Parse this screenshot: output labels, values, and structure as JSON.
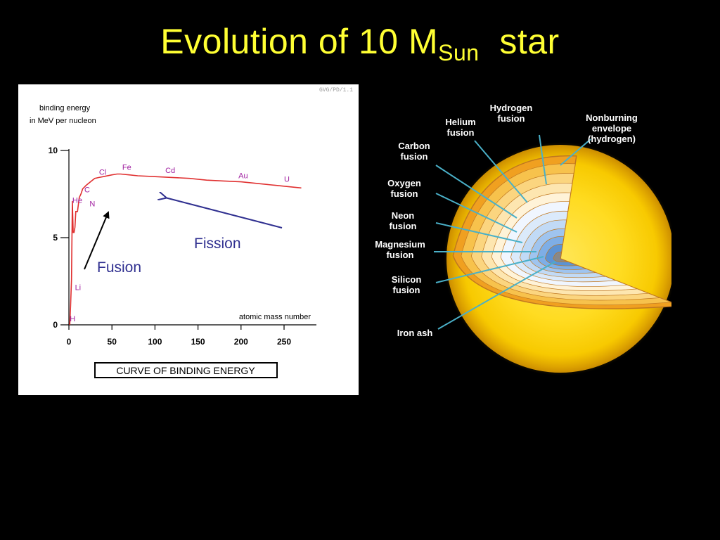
{
  "slide": {
    "title_main": "Evolution of 10 M",
    "title_sub": "Sun",
    "title_end": "star"
  },
  "colors": {
    "background": "#000000",
    "title": "#ffff33",
    "curve": "#e03030",
    "element_labels": "#a020a0",
    "arrow_blue": "#303090",
    "arrow_black": "#000000"
  },
  "chart_data": {
    "type": "line",
    "watermark": "GVG/PD/1.1",
    "ylabel_line1": "binding energy",
    "ylabel_line2": "in MeV per nucleon",
    "xlabel": "atomic mass number",
    "caption": "CURVE OF BINDING ENERGY",
    "xlim": [
      0,
      280
    ],
    "ylim": [
      0,
      10
    ],
    "x_ticks": [
      0,
      50,
      100,
      150,
      200,
      250
    ],
    "y_ticks": [
      0,
      5,
      10
    ],
    "x_tick_labels": [
      "0",
      "50",
      "100",
      "150",
      "200",
      "250"
    ],
    "y_tick_labels": [
      "0",
      "5",
      "10"
    ],
    "series": [
      {
        "x": [
          1,
          2,
          3,
          4,
          5,
          6,
          7,
          8,
          10,
          12,
          14,
          16,
          20,
          25,
          30,
          35,
          40,
          50,
          56,
          60,
          70,
          80,
          100,
          120,
          140,
          160,
          180,
          200,
          220,
          240,
          260,
          270
        ],
        "y": [
          0.0,
          1.1,
          2.6,
          7.1,
          5.3,
          5.3,
          5.6,
          6.5,
          6.5,
          7.3,
          7.5,
          7.8,
          8.0,
          8.2,
          8.4,
          8.45,
          8.5,
          8.6,
          8.65,
          8.65,
          8.6,
          8.55,
          8.5,
          8.45,
          8.4,
          8.3,
          8.25,
          8.2,
          8.1,
          8.0,
          7.9,
          7.85
        ]
      }
    ],
    "element_labels": [
      {
        "label": "H",
        "x": 1,
        "y": 0.2
      },
      {
        "label": "Li",
        "x": 7,
        "y": 2.0
      },
      {
        "label": "He",
        "x": 4,
        "y": 7.0
      },
      {
        "label": "C",
        "x": 18,
        "y": 7.6
      },
      {
        "label": "N",
        "x": 24,
        "y": 6.8
      },
      {
        "label": "Cl",
        "x": 35,
        "y": 8.6
      },
      {
        "label": "Fe",
        "x": 62,
        "y": 8.9
      },
      {
        "label": "Cd",
        "x": 112,
        "y": 8.7
      },
      {
        "label": "Au",
        "x": 197,
        "y": 8.4
      },
      {
        "label": "U",
        "x": 250,
        "y": 8.2
      }
    ]
  },
  "annotations": {
    "fusion": "Fusion",
    "fission": "Fission"
  },
  "diagram": {
    "labels": [
      {
        "text": "Hydrogen\nfusion"
      },
      {
        "text": "Helium\nfusion"
      },
      {
        "text": "Nonburning\nenvelope\n(hydrogen)"
      },
      {
        "text": "Carbon\nfusion"
      },
      {
        "text": "Oxygen\nfusion"
      },
      {
        "text": "Neon\nfusion"
      },
      {
        "text": "Magnesium\nfusion"
      },
      {
        "text": "Silicon\nfusion"
      },
      {
        "text": "Iron ash"
      }
    ]
  }
}
